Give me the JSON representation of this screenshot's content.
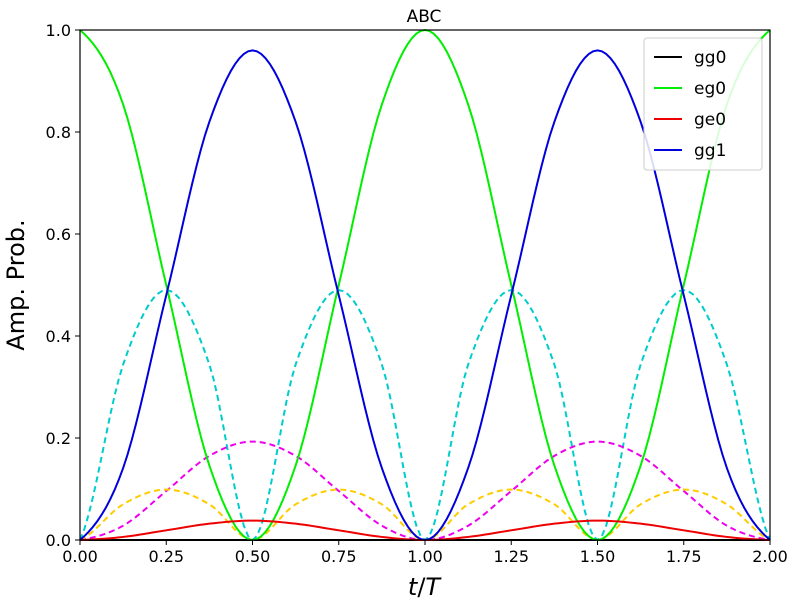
{
  "chart_data": {
    "type": "line",
    "title": "ABC",
    "xlabel": "t/T",
    "ylabel": "Amp. Prob.",
    "xlim": [
      0,
      2
    ],
    "ylim": [
      0,
      1
    ],
    "xticks": [
      "0.00",
      "0.25",
      "0.50",
      "0.75",
      "1.00",
      "1.25",
      "1.50",
      "1.75",
      "2.00"
    ],
    "yticks": [
      "0.0",
      "0.2",
      "0.4",
      "0.6",
      "0.8",
      "1.0"
    ],
    "grid": false,
    "legend_position": "top-right",
    "x": [
      0,
      0.125,
      0.25,
      0.375,
      0.5,
      0.625,
      0.75,
      0.875,
      1.0,
      1.125,
      1.25,
      1.375,
      1.5,
      1.625,
      1.75,
      1.875,
      2.0
    ],
    "series": [
      {
        "name": "gg0",
        "color": "#000000",
        "style": "solid",
        "values": [
          0,
          0,
          0,
          0,
          0,
          0,
          0,
          0,
          0,
          0,
          0,
          0,
          0,
          0,
          0,
          0,
          0
        ]
      },
      {
        "name": "eg0",
        "color": "#00ee00",
        "style": "solid",
        "values": [
          1.0,
          0.854,
          0.5,
          0.146,
          0.0,
          0.146,
          0.5,
          0.854,
          1.0,
          0.854,
          0.5,
          0.146,
          0.0,
          0.146,
          0.5,
          0.854,
          1.0
        ]
      },
      {
        "name": "ge0",
        "color": "#ee0000",
        "style": "solid",
        "values": [
          0,
          0.006,
          0.019,
          0.032,
          0.038,
          0.032,
          0.019,
          0.006,
          0,
          0.006,
          0.019,
          0.032,
          0.038,
          0.032,
          0.019,
          0.006,
          0
        ]
      },
      {
        "name": "gg1",
        "color": "#0000dd",
        "style": "solid",
        "values": [
          0,
          0.141,
          0.48,
          0.82,
          0.96,
          0.82,
          0.48,
          0.141,
          0,
          0.141,
          0.48,
          0.82,
          0.96,
          0.82,
          0.48,
          0.141,
          0
        ]
      },
      {
        "color": "#00cccc",
        "style": "dashed",
        "values": [
          0,
          0.344,
          0.49,
          0.344,
          0,
          0.344,
          0.49,
          0.344,
          0,
          0.344,
          0.49,
          0.344,
          0,
          0.344,
          0.49,
          0.344,
          0
        ]
      },
      {
        "color": "#ee00ee",
        "style": "dashed",
        "values": [
          0,
          0.028,
          0.096,
          0.165,
          0.193,
          0.165,
          0.096,
          0.028,
          0,
          0.028,
          0.096,
          0.165,
          0.193,
          0.165,
          0.096,
          0.028,
          0
        ]
      },
      {
        "color": "#ffcc00",
        "style": "dashed",
        "values": [
          0,
          0.07,
          0.099,
          0.07,
          0,
          0.07,
          0.099,
          0.07,
          0,
          0.07,
          0.099,
          0.07,
          0,
          0.07,
          0.099,
          0.07,
          0
        ]
      }
    ]
  }
}
